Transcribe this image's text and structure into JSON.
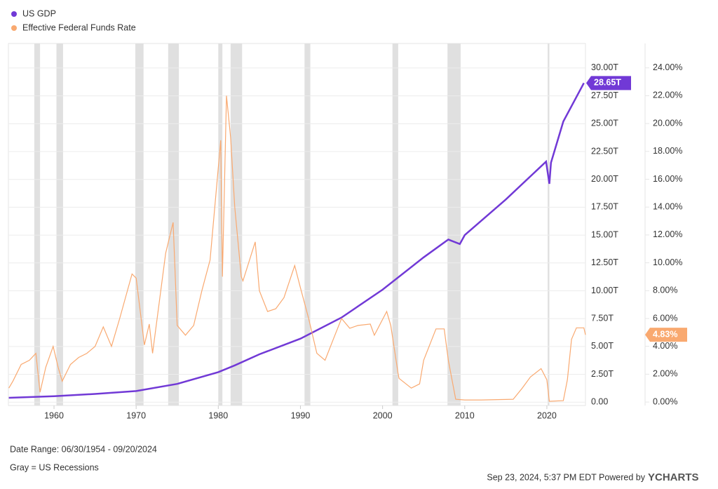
{
  "chart_data": {
    "type": "line",
    "legend": "top-left",
    "grid": true,
    "xlim": [
      1954.45,
      2024.7
    ],
    "xticks": [
      1960,
      1970,
      1980,
      1990,
      2000,
      2010,
      2020
    ],
    "ylim": [
      -0.3,
      32.2
    ],
    "yticks": [
      {
        "value": 0,
        "label": "0.00"
      },
      {
        "value": 2.5,
        "label": "2.50T"
      },
      {
        "value": 5,
        "label": "5.00T"
      },
      {
        "value": 7.5,
        "label": "7.50T"
      },
      {
        "value": 10,
        "label": "10.00T"
      },
      {
        "value": 12.5,
        "label": "12.50T"
      },
      {
        "value": 15,
        "label": "15.00T"
      },
      {
        "value": 17.5,
        "label": "17.50T"
      },
      {
        "value": 20,
        "label": "20.00T"
      },
      {
        "value": 22.5,
        "label": "22.50T"
      },
      {
        "value": 25,
        "label": "25.00T"
      },
      {
        "value": 27.5,
        "label": "27.50T"
      },
      {
        "value": 30,
        "label": "30.00T"
      }
    ],
    "y2lim": [
      -0.25,
      25.75
    ],
    "y2ticks": [
      {
        "value": 0,
        "label": "0.00%"
      },
      {
        "value": 2,
        "label": "2.00%"
      },
      {
        "value": 4,
        "label": "4.00%"
      },
      {
        "value": 6,
        "label": "6.00%"
      },
      {
        "value": 8,
        "label": "8.00%"
      },
      {
        "value": 10,
        "label": "10.00%"
      },
      {
        "value": 12,
        "label": "12.00%"
      },
      {
        "value": 14,
        "label": "14.00%"
      },
      {
        "value": 16,
        "label": "16.00%"
      },
      {
        "value": 18,
        "label": "18.00%"
      },
      {
        "value": 20,
        "label": "20.00%"
      },
      {
        "value": 22,
        "label": "22.00%"
      },
      {
        "value": 24,
        "label": "24.00%"
      }
    ],
    "recession_color": "#e0e0e0",
    "recessions": [
      [
        1957.6,
        1958.3
      ],
      [
        1960.3,
        1961.1
      ],
      [
        1969.9,
        1970.9
      ],
      [
        1973.9,
        1975.2
      ],
      [
        1980.0,
        1980.5
      ],
      [
        1981.5,
        1982.9
      ],
      [
        1990.5,
        1991.2
      ],
      [
        2001.2,
        2001.9
      ],
      [
        2007.9,
        2009.5
      ],
      [
        2020.1,
        2020.3
      ]
    ],
    "series": [
      {
        "name": "US GDP",
        "color": "#7139d6",
        "end_label": "28.65T",
        "x": [
          1954.5,
          1960,
          1965,
          1970,
          1975,
          1980,
          1982,
          1985,
          1990,
          1995,
          2000,
          2005,
          2008,
          2009.4,
          2010,
          2015,
          2019.9,
          2020.3,
          2020.5,
          2022,
          2024.5
        ],
        "values": [
          0.39,
          0.54,
          0.74,
          1.0,
          1.64,
          2.7,
          3.3,
          4.3,
          5.7,
          7.6,
          10.1,
          13.0,
          14.6,
          14.2,
          15.0,
          18.2,
          21.6,
          19.6,
          21.5,
          25.2,
          28.65
        ]
      },
      {
        "name": "Effective Federal Funds Rate",
        "color": "#f9a970",
        "axis": "y2",
        "end_label": "4.83%",
        "x": [
          1954.5,
          1955,
          1956,
          1957,
          1957.8,
          1958.3,
          1959,
          1959.9,
          1960.5,
          1961,
          1962,
          1963,
          1964,
          1965,
          1966,
          1967,
          1968,
          1969.5,
          1970,
          1971,
          1971.6,
          1972,
          1973,
          1973.6,
          1974.5,
          1975,
          1976,
          1977,
          1978,
          1979,
          1980.3,
          1980.5,
          1981,
          1981.5,
          1982,
          1982.8,
          1983,
          1984.5,
          1985,
          1986,
          1987,
          1988,
          1989.3,
          1990,
          1991,
          1992,
          1993,
          1994,
          1995,
          1996,
          1997,
          1998.5,
          1999,
          2000.5,
          2001,
          2001.9,
          2002,
          2003.5,
          2004.5,
          2005,
          2006.5,
          2007.5,
          2008,
          2008.9,
          2010,
          2012,
          2015.9,
          2017,
          2018,
          2019.3,
          2020,
          2020.3,
          2022,
          2022.5,
          2023,
          2023.6,
          2024.5,
          2024.7
        ],
        "values": [
          1.0,
          1.5,
          2.7,
          3.0,
          3.5,
          0.7,
          2.5,
          4.0,
          2.5,
          1.5,
          2.7,
          3.2,
          3.5,
          4.0,
          5.4,
          4.0,
          6.0,
          9.2,
          8.9,
          4.1,
          5.6,
          3.5,
          8.0,
          10.7,
          12.9,
          5.5,
          4.8,
          5.5,
          8.0,
          10.2,
          18.8,
          9.0,
          22.0,
          19.0,
          14.0,
          9.0,
          8.7,
          11.5,
          8.0,
          6.5,
          6.7,
          7.5,
          9.8,
          8.2,
          6.0,
          3.5,
          3.0,
          4.5,
          6.0,
          5.3,
          5.5,
          5.6,
          4.8,
          6.5,
          5.5,
          2.0,
          1.7,
          1.0,
          1.3,
          3.0,
          5.25,
          5.25,
          3.0,
          0.2,
          0.15,
          0.15,
          0.2,
          1.0,
          1.8,
          2.4,
          1.6,
          0.05,
          0.1,
          1.6,
          4.5,
          5.33,
          5.33,
          4.83
        ]
      }
    ],
    "notes": [
      "Date Range: 06/30/1954 - 09/20/2024",
      "Gray = US Recessions"
    ],
    "footer": "Sep 23, 2024, 5:37 PM EDT Powered by",
    "brand": "YCHARTS"
  }
}
